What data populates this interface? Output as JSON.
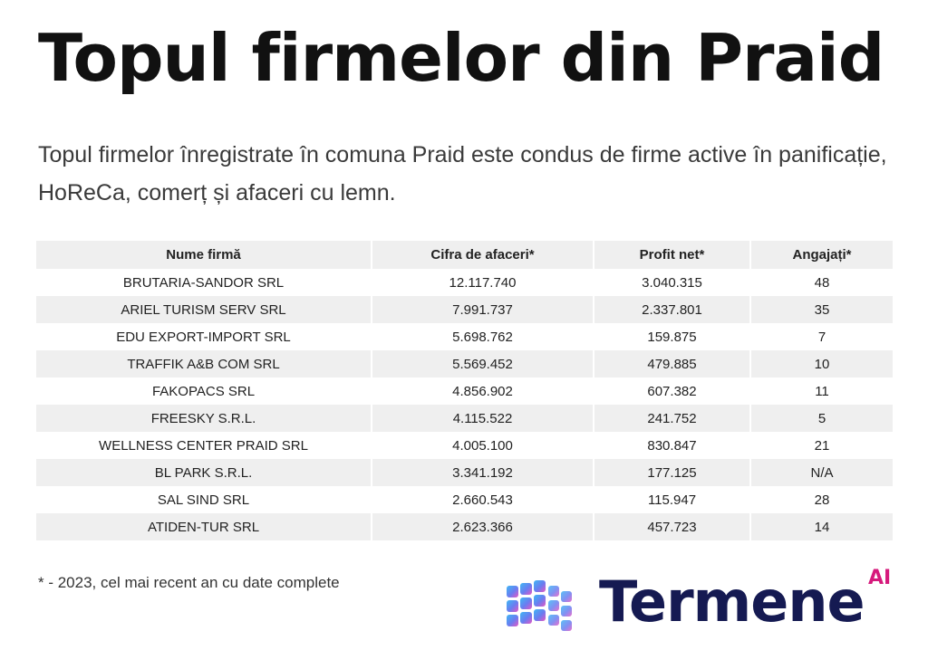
{
  "title": "Topul firmelor din Praid",
  "subtitle": "Topul firmelor înregistrate în comuna Praid este condus de firme active în panificație, HoReCa, comerț și afaceri cu lemn.",
  "table": {
    "headers": [
      "Nume firmă",
      "Cifra de afaceri*",
      "Profit net*",
      "Angajați*"
    ],
    "rows": [
      [
        "BRUTARIA-SANDOR SRL",
        "12.117.740",
        "3.040.315",
        "48"
      ],
      [
        "ARIEL TURISM SERV SRL",
        "7.991.737",
        "2.337.801",
        "35"
      ],
      [
        "EDU EXPORT-IMPORT SRL",
        "5.698.762",
        "159.875",
        "7"
      ],
      [
        "TRAFFIK A&B COM SRL",
        "5.569.452",
        "479.885",
        "10"
      ],
      [
        "FAKOPACS SRL",
        "4.856.902",
        "607.382",
        "11"
      ],
      [
        "FREESKY S.R.L.",
        "4.115.522",
        "241.752",
        "5"
      ],
      [
        "WELLNESS CENTER PRAID SRL",
        "4.005.100",
        "830.847",
        "21"
      ],
      [
        "BL PARK S.R.L.",
        "3.341.192",
        "177.125",
        "N/A"
      ],
      [
        "SAL SIND SRL",
        "2.660.543",
        "115.947",
        "28"
      ],
      [
        "ATIDEN-TUR SRL",
        "2.623.366",
        "457.723",
        "14"
      ]
    ]
  },
  "footnote": "* - 2023, cel mai recent an cu date complete",
  "logo": {
    "text": "Termene",
    "superscript": "AI",
    "icon": "cube-grid-icon",
    "colors": {
      "text": "#151a52",
      "ai": "#d61a7c",
      "cube_blue": "#4a8cf0",
      "cube_pink": "#e05ac8"
    }
  }
}
